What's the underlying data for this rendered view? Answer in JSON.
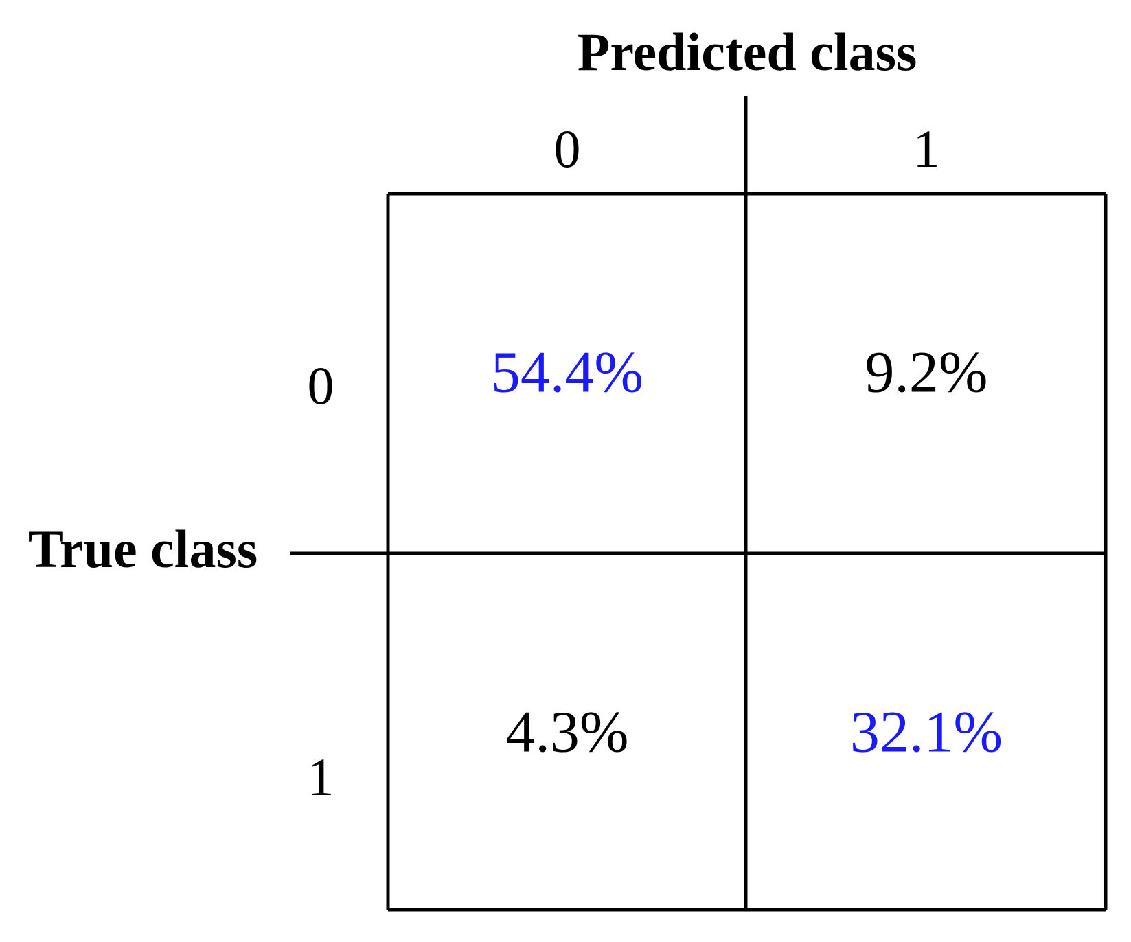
{
  "header": {
    "column_title": "Predicted class",
    "row_title": "True class"
  },
  "table": {
    "columns": [
      "0",
      "1"
    ],
    "rows": [
      {
        "label": "0",
        "cells": [
          "54.4%",
          "9.2%"
        ]
      },
      {
        "label": "1",
        "cells": [
          "4.3%",
          "32.1%"
        ]
      }
    ]
  }
}
